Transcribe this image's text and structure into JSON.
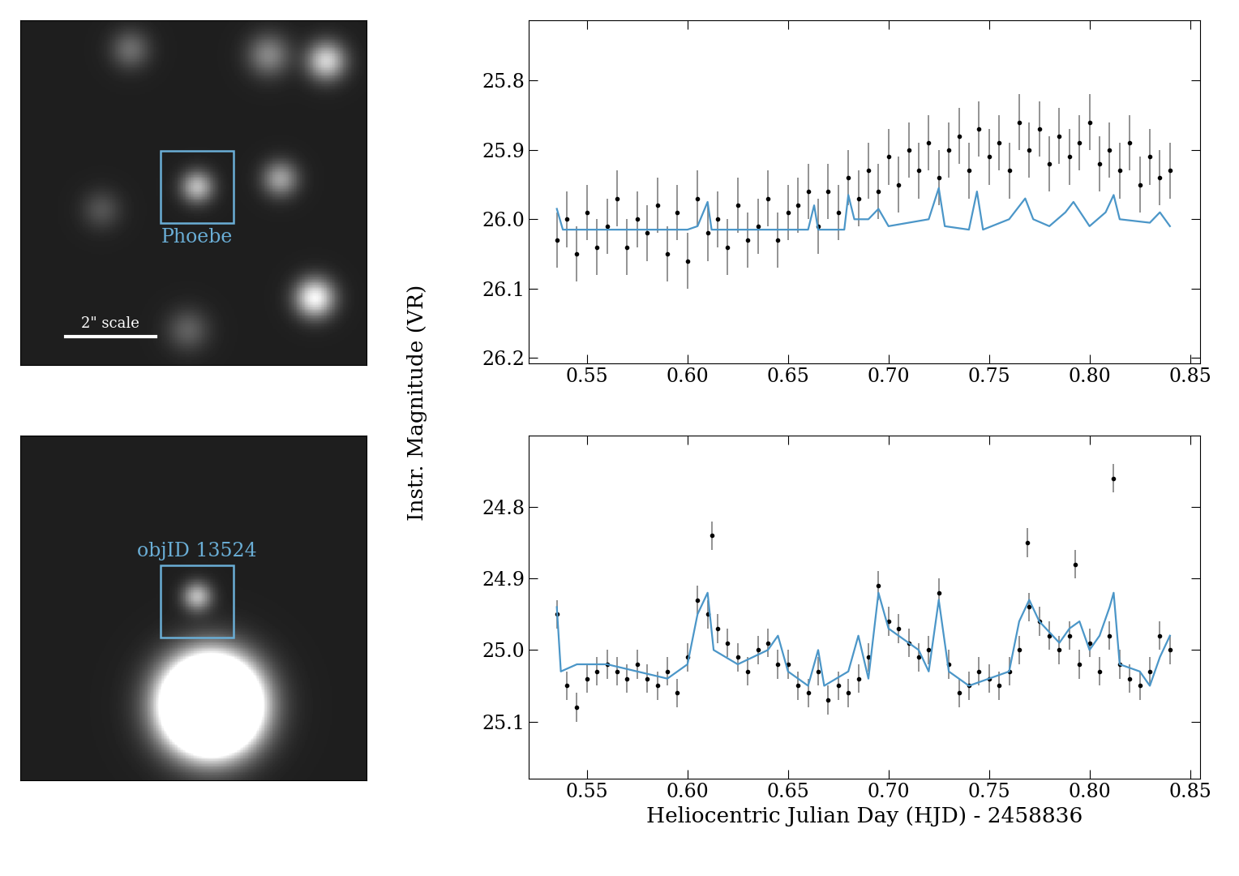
{
  "shared_ylabel": "Instr. Magnitude (VR)",
  "chart_data": [
    {
      "type": "image",
      "tick_labels": false,
      "xlim": [
        0,
        30
      ],
      "ylim": [
        30,
        0
      ],
      "background": 0.12,
      "sources": [
        {
          "x": 15.3,
          "y": 14.5,
          "amplitude": 0.6,
          "sigma": 1.0
        },
        {
          "x": 22.5,
          "y": 13.8,
          "amplitude": 0.5,
          "sigma": 1.1
        },
        {
          "x": 21.5,
          "y": 3.0,
          "amplitude": 0.4,
          "sigma": 1.3
        },
        {
          "x": 26.5,
          "y": 3.5,
          "amplitude": 0.7,
          "sigma": 1.2
        },
        {
          "x": 25.5,
          "y": 24.2,
          "amplitude": 0.85,
          "sigma": 1.2
        },
        {
          "x": 9.5,
          "y": 2.5,
          "amplitude": 0.3,
          "sigma": 1.2
        },
        {
          "x": 7.0,
          "y": 16.5,
          "amplitude": 0.2,
          "sigma": 1.2
        },
        {
          "x": 14.5,
          "y": 27.0,
          "amplitude": 0.25,
          "sigma": 1.3
        }
      ],
      "box": {
        "x": 15.3,
        "y": 14.5,
        "size": 6.3,
        "label": "Phoebe",
        "label_position": "below",
        "color": "#6aaed6"
      },
      "scale_bar": {
        "x": [
          3.9,
          11.7
        ],
        "y": 27.5,
        "label": "2\" scale",
        "color": "white"
      }
    },
    {
      "type": "scatter",
      "xlim": [
        0.521,
        0.855
      ],
      "ylim": [
        26.208,
        25.713
      ],
      "xticks": [
        0.55,
        {
          "value": 0.6,
          "label": "0.60"
        },
        0.65,
        {
          "value": 0.7,
          "label": "0.70"
        },
        0.75,
        {
          "value": 0.8,
          "label": "0.80"
        },
        0.85
      ],
      "yticks": [
        25.8,
        25.9,
        {
          "value": 26.0,
          "label": "26.0"
        },
        26.1,
        26.2
      ],
      "series": [
        {
          "type": "errorbar",
          "color": "black",
          "error": 0.04,
          "x": [
            0.535,
            0.54,
            0.545,
            0.55,
            0.555,
            0.56,
            0.565,
            0.57,
            0.575,
            0.58,
            0.585,
            0.59,
            0.595,
            0.6,
            0.605,
            0.61,
            0.615,
            0.62,
            0.625,
            0.63,
            0.635,
            0.64,
            0.645,
            0.65,
            0.655,
            0.66,
            0.665,
            0.67,
            0.675,
            0.68,
            0.685,
            0.69,
            0.695,
            0.7,
            0.705,
            0.71,
            0.715,
            0.72,
            0.725,
            0.73,
            0.735,
            0.74,
            0.745,
            0.75,
            0.755,
            0.76,
            0.765,
            0.77,
            0.775,
            0.78,
            0.785,
            0.79,
            0.795,
            0.8,
            0.805,
            0.81,
            0.815,
            0.82,
            0.825,
            0.83,
            0.835,
            0.84
          ],
          "values": [
            26.03,
            26.0,
            26.05,
            25.99,
            26.04,
            26.01,
            25.97,
            26.04,
            26.0,
            26.02,
            25.98,
            26.05,
            25.99,
            26.06,
            25.97,
            26.02,
            26.0,
            26.04,
            25.98,
            26.03,
            26.01,
            25.97,
            26.03,
            25.99,
            25.98,
            25.96,
            26.01,
            25.96,
            25.99,
            25.94,
            25.97,
            25.93,
            25.96,
            25.91,
            25.95,
            25.9,
            25.93,
            25.89,
            25.94,
            25.9,
            25.88,
            25.93,
            25.87,
            25.91,
            25.89,
            25.93,
            25.86,
            25.9,
            25.87,
            25.92,
            25.88,
            25.91,
            25.89,
            25.86,
            25.92,
            25.9,
            25.93,
            25.89,
            25.95,
            25.91,
            25.94,
            25.93
          ]
        },
        {
          "type": "line",
          "color": "#4b96c8",
          "x": [
            0.535,
            0.538,
            0.6,
            0.605,
            0.61,
            0.612,
            0.66,
            0.663,
            0.665,
            0.678,
            0.68,
            0.683,
            0.69,
            0.695,
            0.7,
            0.72,
            0.725,
            0.728,
            0.74,
            0.744,
            0.747,
            0.76,
            0.768,
            0.772,
            0.78,
            0.788,
            0.792,
            0.8,
            0.808,
            0.812,
            0.815,
            0.83,
            0.835,
            0.84
          ],
          "values": [
            25.985,
            26.015,
            26.015,
            26.01,
            25.975,
            26.015,
            26.015,
            25.98,
            26.015,
            26.015,
            25.965,
            26.0,
            26.0,
            25.985,
            26.01,
            26.0,
            25.955,
            26.01,
            26.015,
            25.96,
            26.015,
            26.0,
            25.97,
            26.0,
            26.01,
            25.99,
            25.975,
            26.01,
            25.99,
            25.965,
            26.0,
            26.005,
            25.99,
            26.01
          ]
        }
      ]
    },
    {
      "type": "image",
      "tick_labels": false,
      "xlim": [
        0,
        30
      ],
      "ylim": [
        30,
        0
      ],
      "background": 0.12,
      "sources": [
        {
          "x": 15.3,
          "y": 14.0,
          "amplitude": 0.6,
          "sigma": 0.9
        },
        {
          "x": 16.5,
          "y": 23.5,
          "amplitude": 4.0,
          "sigma": 2.6
        }
      ],
      "box": {
        "x": 15.3,
        "y": 14.4,
        "size": 6.3,
        "label": "objID 13524",
        "label_position": "above",
        "color": "#6aaed6"
      }
    },
    {
      "type": "scatter",
      "xlim": [
        0.521,
        0.855
      ],
      "ylim": [
        25.18,
        24.7
      ],
      "xlabel": "Heliocentric Julian Day (HJD) - 2458836",
      "xticks": [
        0.55,
        {
          "value": 0.6,
          "label": "0.60"
        },
        0.65,
        {
          "value": 0.7,
          "label": "0.70"
        },
        0.75,
        {
          "value": 0.8,
          "label": "0.80"
        },
        0.85
      ],
      "yticks": [
        24.8,
        24.9,
        {
          "value": 25.0,
          "label": "25.0"
        },
        25.1
      ],
      "series": [
        {
          "type": "errorbar",
          "color": "black",
          "error": 0.02,
          "x": [
            0.535,
            0.54,
            0.545,
            0.55,
            0.555,
            0.56,
            0.565,
            0.57,
            0.575,
            0.58,
            0.585,
            0.59,
            0.595,
            0.6,
            0.605,
            0.61,
            0.612,
            0.615,
            0.62,
            0.625,
            0.63,
            0.635,
            0.64,
            0.645,
            0.65,
            0.655,
            0.66,
            0.665,
            0.67,
            0.675,
            0.68,
            0.685,
            0.69,
            0.695,
            0.7,
            0.705,
            0.71,
            0.715,
            0.72,
            0.725,
            0.73,
            0.735,
            0.74,
            0.745,
            0.75,
            0.755,
            0.76,
            0.765,
            0.769,
            0.77,
            0.775,
            0.78,
            0.785,
            0.79,
            0.793,
            0.795,
            0.8,
            0.805,
            0.81,
            0.812,
            0.815,
            0.82,
            0.825,
            0.83,
            0.835,
            0.84
          ],
          "values": [
            24.95,
            25.05,
            25.08,
            25.04,
            25.03,
            25.02,
            25.03,
            25.04,
            25.02,
            25.04,
            25.05,
            25.03,
            25.06,
            25.01,
            24.93,
            24.95,
            24.84,
            24.97,
            24.99,
            25.01,
            25.03,
            25.0,
            24.99,
            25.02,
            25.02,
            25.05,
            25.06,
            25.03,
            25.07,
            25.05,
            25.06,
            25.04,
            25.01,
            24.91,
            24.96,
            24.97,
            24.99,
            25.01,
            25.0,
            24.92,
            25.02,
            25.06,
            25.05,
            25.03,
            25.04,
            25.05,
            25.03,
            25.0,
            24.85,
            24.94,
            24.96,
            24.98,
            25.0,
            24.98,
            24.88,
            25.02,
            24.99,
            25.03,
            24.98,
            24.76,
            25.02,
            25.04,
            25.05,
            25.03,
            24.98,
            25.0
          ]
        },
        {
          "type": "line",
          "color": "#4b96c8",
          "x": [
            0.535,
            0.537,
            0.545,
            0.56,
            0.575,
            0.59,
            0.6,
            0.605,
            0.61,
            0.613,
            0.625,
            0.64,
            0.645,
            0.65,
            0.66,
            0.665,
            0.668,
            0.68,
            0.685,
            0.69,
            0.695,
            0.7,
            0.715,
            0.72,
            0.725,
            0.73,
            0.74,
            0.75,
            0.76,
            0.765,
            0.77,
            0.775,
            0.785,
            0.79,
            0.795,
            0.8,
            0.805,
            0.81,
            0.812,
            0.815,
            0.825,
            0.83,
            0.835,
            0.84
          ],
          "values": [
            24.94,
            25.03,
            25.02,
            25.02,
            25.03,
            25.04,
            25.02,
            24.95,
            24.92,
            25.0,
            25.02,
            25.0,
            24.98,
            25.03,
            25.05,
            25.0,
            25.05,
            25.03,
            24.98,
            25.04,
            24.92,
            24.97,
            25.0,
            25.03,
            24.93,
            25.03,
            25.05,
            25.04,
            25.03,
            24.96,
            24.93,
            24.96,
            24.99,
            24.97,
            24.96,
            25.0,
            24.98,
            24.94,
            24.92,
            25.02,
            25.03,
            25.05,
            25.01,
            24.98
          ]
        }
      ]
    }
  ]
}
